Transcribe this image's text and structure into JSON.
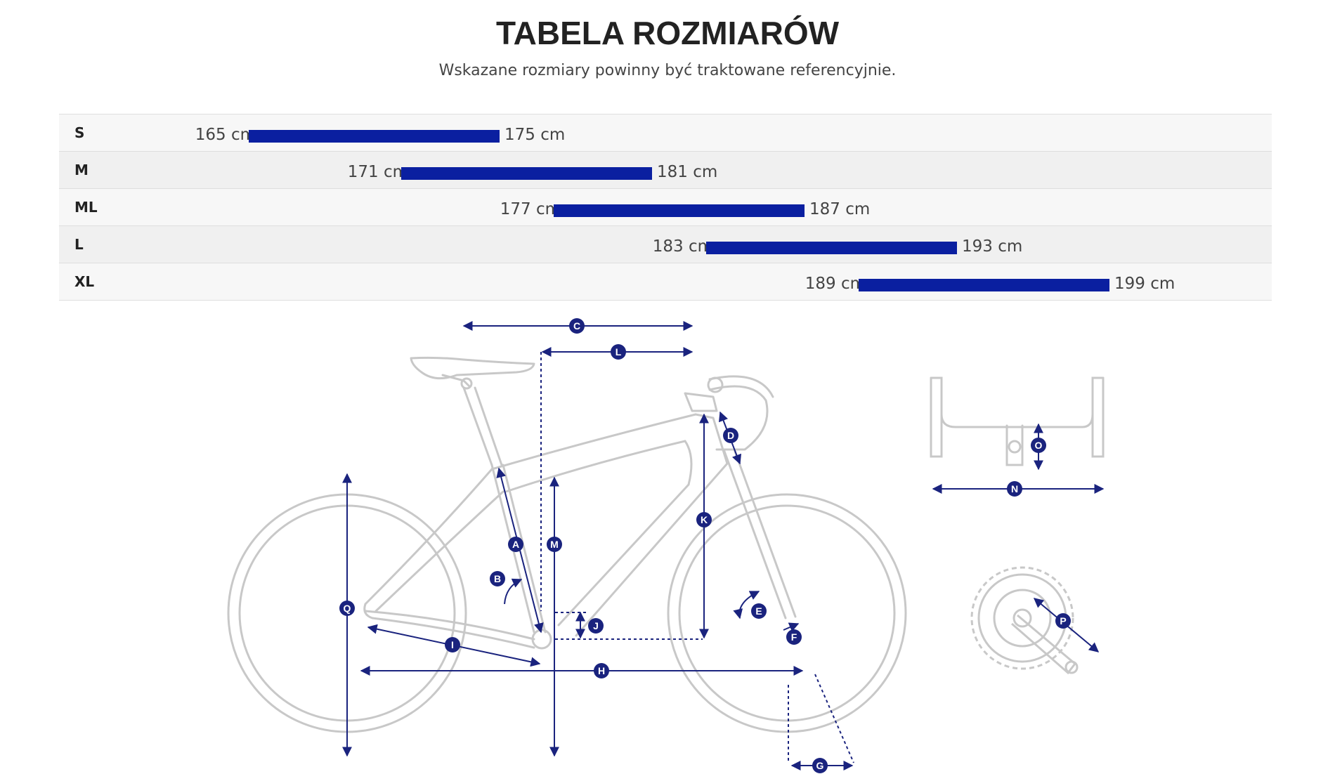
{
  "header": {
    "title": "TABELA ROZMIARÓW",
    "subtitle": "Wskazane rozmiary powinny być traktowane referencyjnie."
  },
  "size_table": {
    "bar_color": "#0a1fa0",
    "rows": [
      {
        "size": "S",
        "min_label": "165 cm",
        "max_label": "175 cm",
        "min": 165,
        "max": 175
      },
      {
        "size": "M",
        "min_label": "171 cm",
        "max_label": "181 cm",
        "min": 171,
        "max": 181
      },
      {
        "size": "ML",
        "min_label": "177 cm",
        "max_label": "187 cm",
        "min": 177,
        "max": 187
      },
      {
        "size": "L",
        "min_label": "183 cm",
        "max_label": "193 cm",
        "min": 183,
        "max": 193
      },
      {
        "size": "XL",
        "min_label": "189 cm",
        "max_label": "199 cm",
        "min": 189,
        "max": 199
      }
    ]
  },
  "geometry_diagram": {
    "line_color": "#c8c8c8",
    "marker_color": "#1a237e",
    "markers": {
      "A": "A",
      "B": "B",
      "C": "C",
      "D": "D",
      "E": "E",
      "F": "F",
      "G": "G",
      "H": "H",
      "I": "I",
      "J": "J",
      "K": "K",
      "L": "L",
      "M": "M",
      "N": "N",
      "O": "O",
      "P": "P",
      "Q": "Q"
    }
  }
}
